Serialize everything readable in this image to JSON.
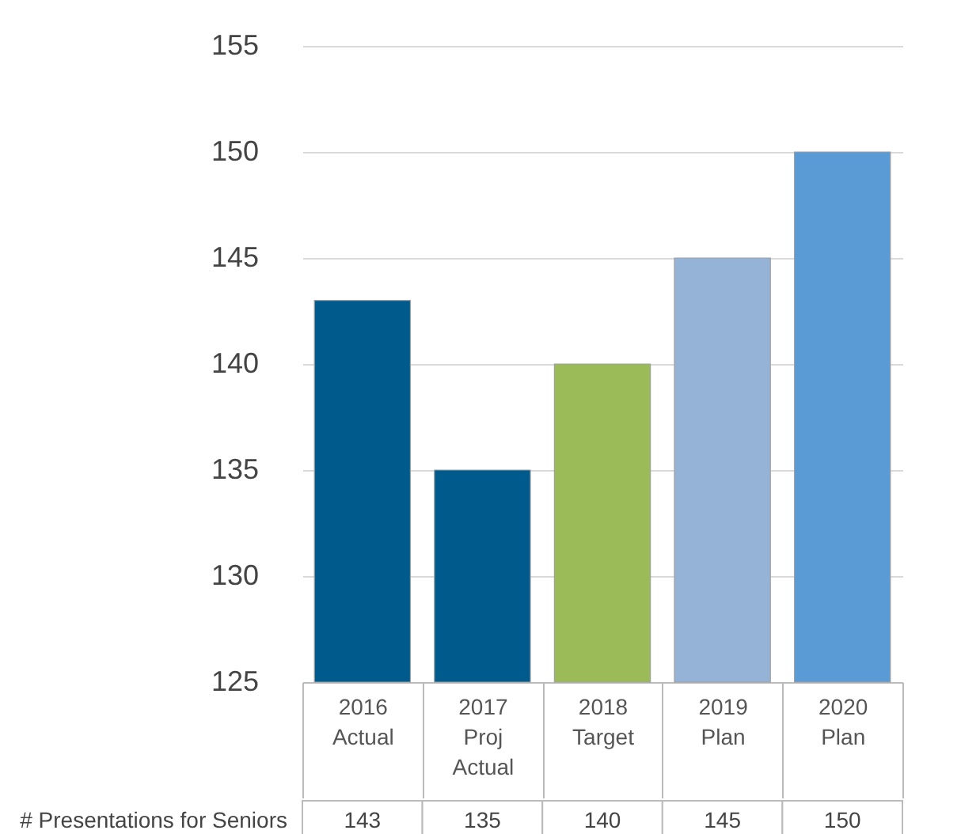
{
  "chart_data": {
    "type": "bar",
    "categories": [
      "2016 Actual",
      "2017 Proj Actual",
      "2018 Target",
      "2019 Plan",
      "2020 Plan"
    ],
    "series": [
      {
        "name": "# Presentations for Seniors",
        "colors": [
          "#005a8c",
          "#005a8c",
          "#9bbb59",
          "#95b3d7",
          "#5b9bd5"
        ],
        "values": [
          143,
          135,
          140,
          145,
          150
        ]
      }
    ],
    "ylim": [
      125,
      155
    ],
    "yticks": [
      125,
      130,
      135,
      140,
      145,
      150,
      155
    ],
    "grid": "y",
    "data_labels": true,
    "legend": false
  }
}
